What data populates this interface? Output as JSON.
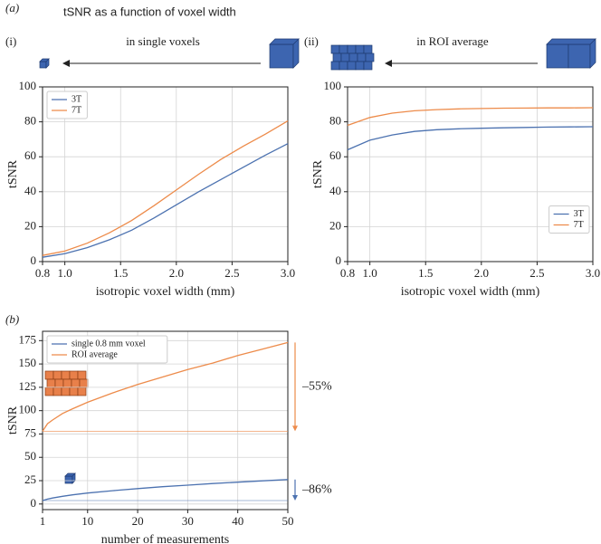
{
  "panel_a_label": "(a)",
  "title": "tSNR as a function of voxel width",
  "panel_i_label": "(i)",
  "panel_i_caption": "in single voxels",
  "panel_ii_label": "(ii)",
  "panel_ii_caption": "in ROI average",
  "panel_b_label": "(b)",
  "chart_data": [
    {
      "type": "line",
      "xlabel": "isotropic voxel width (mm)",
      "ylabel": "tSNR",
      "x": [
        0.8,
        1.0,
        1.2,
        1.4,
        1.6,
        1.8,
        2.0,
        2.2,
        2.4,
        2.6,
        2.8,
        3.0
      ],
      "series": [
        {
          "name": "3T",
          "color": "#4c72b0",
          "values": [
            2.5,
            4.5,
            8,
            12.5,
            18,
            25,
            32.5,
            40,
            47,
            54,
            61,
            67.5
          ]
        },
        {
          "name": "7T",
          "color": "#ed8b4a",
          "values": [
            3.5,
            6,
            10.5,
            16.5,
            23.5,
            32,
            41,
            50,
            58.5,
            66,
            73,
            80.5
          ]
        }
      ],
      "xlim": [
        0.8,
        3.0
      ],
      "xticks": [
        0.8,
        {
          "value": 1,
          "label": "1.0"
        },
        1.5,
        {
          "value": 2,
          "label": "2.0"
        },
        2.5,
        {
          "value": 3,
          "label": "3.0"
        }
      ],
      "ylim": [
        0,
        100
      ],
      "yticks": [
        0,
        20,
        40,
        60,
        80,
        100
      ],
      "grid": true,
      "legend": "upper left"
    },
    {
      "type": "line",
      "xlabel": "isotropic voxel width (mm)",
      "ylabel": "tSNR",
      "x": [
        0.8,
        1.0,
        1.2,
        1.4,
        1.6,
        1.8,
        2.0,
        2.2,
        2.4,
        2.6,
        2.8,
        3.0
      ],
      "series": [
        {
          "name": "3T",
          "color": "#4c72b0",
          "values": [
            64,
            69.5,
            72.5,
            74.5,
            75.5,
            76,
            76.3,
            76.6,
            76.8,
            77,
            77.1,
            77.2
          ]
        },
        {
          "name": "7T",
          "color": "#ed8b4a",
          "values": [
            78,
            82.5,
            85,
            86.3,
            87,
            87.4,
            87.6,
            87.8,
            87.9,
            88,
            88,
            88.1
          ]
        }
      ],
      "xlim": [
        0.8,
        3.0
      ],
      "xticks": [
        0.8,
        {
          "value": 1,
          "label": "1.0"
        },
        1.5,
        {
          "value": 2,
          "label": "2.0"
        },
        2.5,
        {
          "value": 3,
          "label": "3.0"
        }
      ],
      "ylim": [
        0,
        100
      ],
      "yticks": [
        0,
        20,
        40,
        60,
        80,
        100
      ],
      "grid": true,
      "legend": "center right"
    },
    {
      "type": "line",
      "xlabel": "number of measurements",
      "ylabel": "tSNR",
      "x": [
        1,
        2,
        3,
        5,
        7,
        10,
        15,
        20,
        25,
        30,
        35,
        40,
        45,
        50
      ],
      "series": [
        {
          "name": "single 0.8 mm voxel",
          "color": "#4c72b0",
          "values": [
            3.7,
            5.2,
            6.4,
            8.3,
            9.8,
            11.7,
            14.3,
            16.5,
            18.5,
            20.2,
            21.9,
            23.4,
            24.8,
            26.2
          ]
        },
        {
          "name": "ROI average",
          "color": "#ed8b4a",
          "values": [
            78,
            86,
            90,
            97,
            102,
            109,
            119,
            128,
            136,
            144,
            151,
            159,
            166,
            173
          ]
        }
      ],
      "hlines": [
        {
          "value": 3.7,
          "color": "#4c72b0"
        },
        {
          "value": 78,
          "color": "#ed8b4a"
        }
      ],
      "annotations": [
        "–86%",
        "–55%"
      ],
      "xlim": [
        1,
        50
      ],
      "xticks": [
        1,
        10,
        20,
        30,
        40,
        50
      ],
      "ylim": [
        -6,
        185
      ],
      "yticks": [
        0,
        25,
        50,
        75,
        100,
        125,
        150,
        175
      ],
      "grid": true,
      "legend": "upper left"
    }
  ]
}
